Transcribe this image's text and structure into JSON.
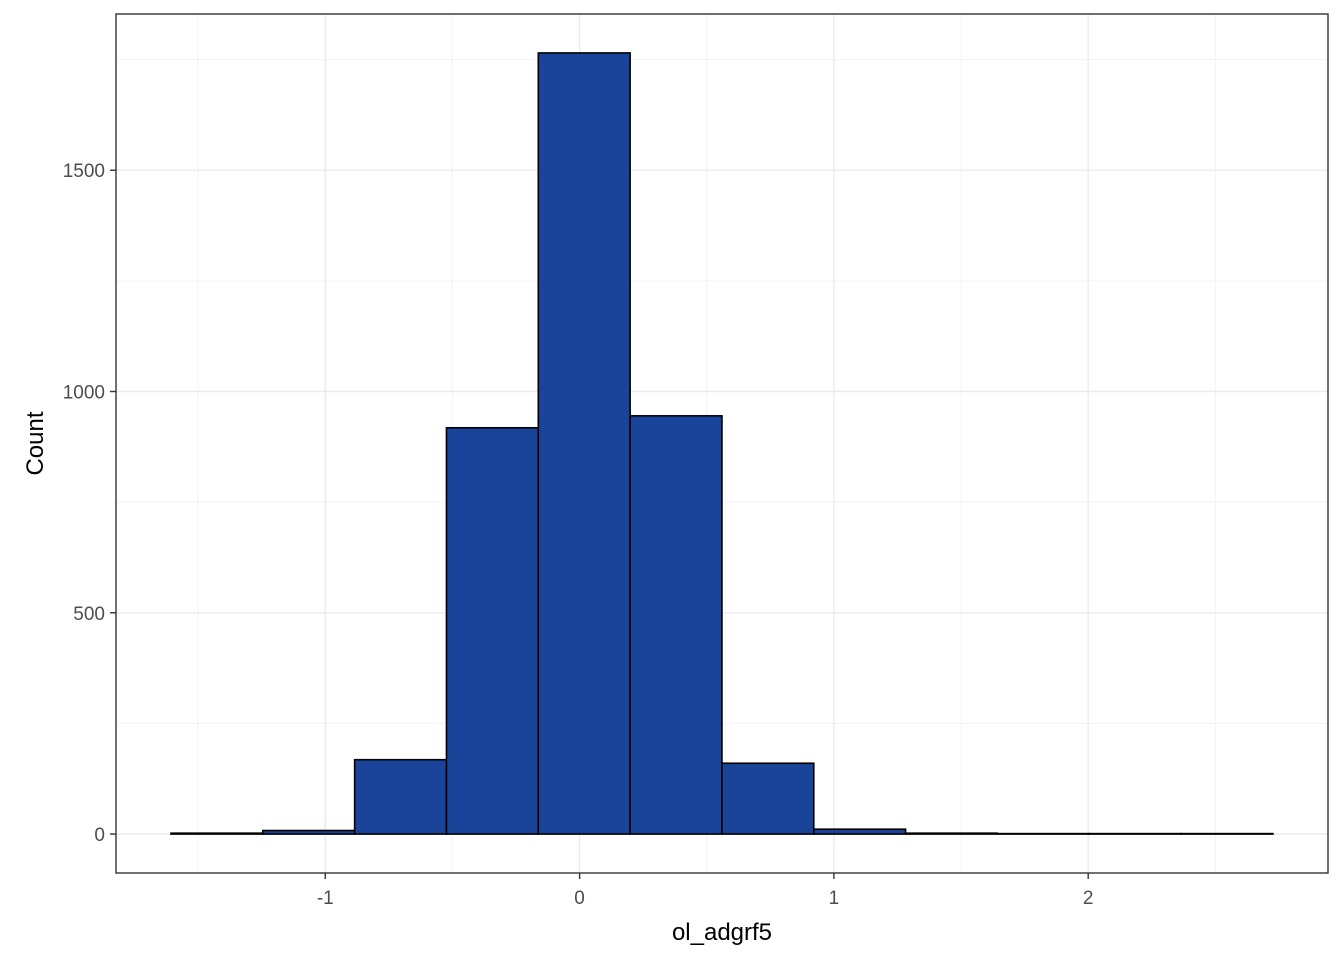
{
  "chart_data": {
    "type": "bar",
    "subtype": "histogram",
    "title": "",
    "xlabel": "ol_adgrf5",
    "ylabel": "Count",
    "bin_width": 0.3611,
    "bins": [
      {
        "x0": -1.6068,
        "x1": -1.2457,
        "count": 2
      },
      {
        "x0": -1.2457,
        "x1": -0.8846,
        "count": 8
      },
      {
        "x0": -0.8846,
        "x1": -0.5235,
        "count": 168
      },
      {
        "x0": -0.5235,
        "x1": -0.1624,
        "count": 918
      },
      {
        "x0": -0.1624,
        "x1": 0.1987,
        "count": 1765
      },
      {
        "x0": 0.1987,
        "x1": 0.5598,
        "count": 945
      },
      {
        "x0": 0.5598,
        "x1": 0.9209,
        "count": 160
      },
      {
        "x0": 0.9209,
        "x1": 1.282,
        "count": 11
      },
      {
        "x0": 1.282,
        "x1": 1.6431,
        "count": 2
      },
      {
        "x0": 1.6431,
        "x1": 2.0042,
        "count": 1
      },
      {
        "x0": 2.0042,
        "x1": 2.3653,
        "count": 1
      },
      {
        "x0": 2.3653,
        "x1": 2.7264,
        "count": 1
      }
    ],
    "xlim": [
      -1.823,
      2.943
    ],
    "ylim": [
      -88,
      1853
    ],
    "x_ticks": [
      -1,
      0,
      1,
      2
    ],
    "x_tick_labels": [
      "-1",
      "0",
      "1",
      "2"
    ],
    "y_ticks": [
      0,
      500,
      1000,
      1500
    ],
    "y_tick_labels": [
      "0",
      "500",
      "1000",
      "1500"
    ],
    "grid": true,
    "legend": "none"
  },
  "colors": {
    "bar_fill": "#1a4499",
    "bar_stroke": "#000000",
    "grid_major": "#ebebeb",
    "grid_minor": "#f3f3f3",
    "panel_border": "#333333",
    "tick_text": "#4d4d4d"
  }
}
